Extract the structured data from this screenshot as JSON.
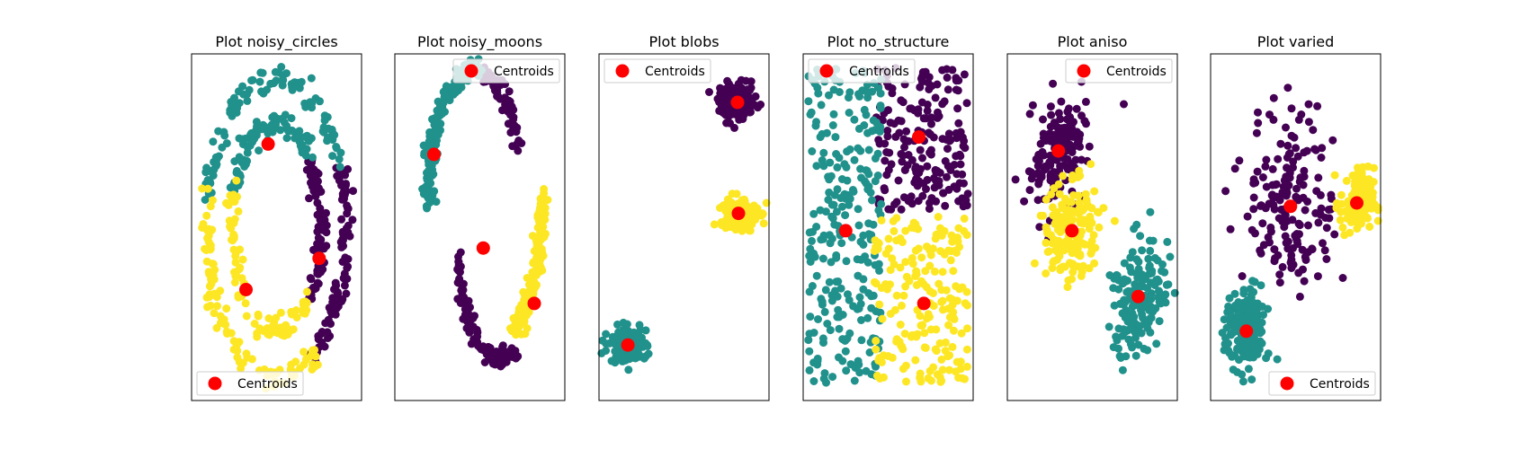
{
  "colors": {
    "cluster_0": "#440154",
    "cluster_1": "#21918c",
    "cluster_2": "#fde725",
    "centroid": "#ff0000"
  },
  "chart_data": [
    {
      "type": "scatter",
      "title": "Plot noisy_circles",
      "legend": {
        "label": "Centroids",
        "placement": "lower left"
      },
      "axes_visible": false,
      "xlim": [
        0,
        1
      ],
      "ylim": [
        0,
        1
      ],
      "clusters": [
        {
          "label": 0,
          "n": 170,
          "arcs": [
            {
              "cx": 0.5,
              "cy": 0.5,
              "rx": 0.41,
              "ry": 0.43,
              "a0": 305,
              "a1": 360,
              "noise": 0.018
            },
            {
              "cx": 0.5,
              "cy": 0.5,
              "rx": 0.41,
              "ry": 0.43,
              "a0": 0,
              "a1": 25,
              "noise": 0.018
            },
            {
              "cx": 0.5,
              "cy": 0.5,
              "rx": 0.26,
              "ry": 0.3,
              "a0": 315,
              "a1": 360,
              "noise": 0.018
            },
            {
              "cx": 0.5,
              "cy": 0.5,
              "rx": 0.26,
              "ry": 0.3,
              "a0": 0,
              "a1": 40,
              "noise": 0.018
            }
          ]
        },
        {
          "label": 1,
          "n": 190,
          "arcs": [
            {
              "cx": 0.5,
              "cy": 0.5,
              "rx": 0.41,
              "ry": 0.43,
              "a0": 25,
              "a1": 165,
              "noise": 0.018
            },
            {
              "cx": 0.5,
              "cy": 0.5,
              "rx": 0.26,
              "ry": 0.3,
              "a0": 40,
              "a1": 160,
              "noise": 0.018
            }
          ]
        },
        {
          "label": 2,
          "n": 190,
          "arcs": [
            {
              "cx": 0.5,
              "cy": 0.5,
              "rx": 0.41,
              "ry": 0.43,
              "a0": 165,
              "a1": 305,
              "noise": 0.018
            },
            {
              "cx": 0.5,
              "cy": 0.5,
              "rx": 0.26,
              "ry": 0.3,
              "a0": 160,
              "a1": 315,
              "noise": 0.018
            }
          ]
        }
      ],
      "centroids": [
        [
          0.45,
          0.74
        ],
        [
          0.75,
          0.41
        ],
        [
          0.32,
          0.32
        ]
      ]
    },
    {
      "type": "scatter",
      "title": "Plot noisy_moons",
      "legend": {
        "label": "Centroids",
        "placement": "upper right"
      },
      "axes_visible": false,
      "xlim": [
        0,
        1
      ],
      "ylim": [
        0,
        1
      ],
      "clusters": [
        {
          "label": 0,
          "n": 180,
          "arcs": [
            {
              "cx": 0.5,
              "cy": 0.5,
              "rx": 0.24,
              "ry": 0.32,
              "a0": 20,
              "a1": 88,
              "noise": 0.015,
              "yshift": 0.12
            },
            {
              "cx": 0.5,
              "cy": 0.5,
              "rx": 0.25,
              "ry": 0.36,
              "a0": 190,
              "a1": 290,
              "noise": 0.015,
              "xshift": 0.12,
              "yshift": -0.02
            }
          ]
        },
        {
          "label": 1,
          "n": 170,
          "arcs": [
            {
              "cx": 0.5,
              "cy": 0.5,
              "rx": 0.3,
              "ry": 0.34,
              "a0": 88,
              "a1": 190,
              "noise": 0.015,
              "yshift": 0.12
            }
          ]
        },
        {
          "label": 2,
          "n": 160,
          "arcs": [
            {
              "cx": 0.5,
              "cy": 0.5,
              "rx": 0.25,
              "ry": 0.42,
              "a0": 285,
              "a1": 360,
              "noise": 0.015,
              "xshift": 0.12,
              "yshift": 0.1
            }
          ]
        }
      ],
      "centroids": [
        [
          0.23,
          0.71
        ],
        [
          0.52,
          0.44
        ],
        [
          0.82,
          0.28
        ]
      ]
    },
    {
      "type": "scatter",
      "title": "Plot blobs",
      "legend": {
        "label": "Centroids",
        "placement": "upper left"
      },
      "axes_visible": false,
      "xlim": [
        0,
        1
      ],
      "ylim": [
        0,
        1
      ],
      "clusters": [
        {
          "label": 0,
          "n": 160,
          "blob": {
            "cx": 0.815,
            "cy": 0.86,
            "sx": 0.055,
            "sy": 0.025
          }
        },
        {
          "label": 1,
          "n": 160,
          "blob": {
            "cx": 0.17,
            "cy": 0.16,
            "sx": 0.055,
            "sy": 0.025
          }
        },
        {
          "label": 2,
          "n": 160,
          "blob": {
            "cx": 0.82,
            "cy": 0.54,
            "sx": 0.055,
            "sy": 0.025
          }
        }
      ],
      "centroids": [
        [
          0.815,
          0.86
        ],
        [
          0.17,
          0.16
        ],
        [
          0.82,
          0.54
        ]
      ]
    },
    {
      "type": "scatter",
      "title": "Plot no_structure",
      "legend": {
        "label": "Centroids",
        "placement": "upper left"
      },
      "axes_visible": false,
      "xlim": [
        0,
        1
      ],
      "ylim": [
        0,
        1
      ],
      "clusters": [
        {
          "label": 0,
          "n": 190,
          "rect": {
            "x0": 0.43,
            "x1": 0.97,
            "y0": 0.55,
            "y1": 0.96
          }
        },
        {
          "label": 1,
          "n": 260,
          "rect": {
            "x0": 0.03,
            "x1": 0.46,
            "y0": 0.05,
            "y1": 0.96
          }
        },
        {
          "label": 2,
          "n": 190,
          "rect": {
            "x0": 0.42,
            "x1": 0.97,
            "y0": 0.05,
            "y1": 0.53
          }
        }
      ],
      "centroids": [
        [
          0.68,
          0.76
        ],
        [
          0.25,
          0.49
        ],
        [
          0.71,
          0.28
        ]
      ]
    },
    {
      "type": "scatter",
      "title": "Plot aniso",
      "legend": {
        "label": "Centroids",
        "placement": "upper right"
      },
      "axes_visible": false,
      "xlim": [
        0,
        1
      ],
      "ylim": [
        0,
        1
      ],
      "clusters": [
        {
          "label": 0,
          "n": 160,
          "blob": {
            "cx": 0.3,
            "cy": 0.72,
            "sx": 0.07,
            "sy": 0.09,
            "rot": -0.9
          }
        },
        {
          "label": 1,
          "n": 160,
          "blob": {
            "cx": 0.77,
            "cy": 0.3,
            "sx": 0.07,
            "sy": 0.09,
            "rot": -0.9
          }
        },
        {
          "label": 2,
          "n": 160,
          "blob": {
            "cx": 0.38,
            "cy": 0.49,
            "sx": 0.07,
            "sy": 0.09,
            "rot": -0.9
          }
        }
      ],
      "centroids": [
        [
          0.3,
          0.72
        ],
        [
          0.38,
          0.49
        ],
        [
          0.77,
          0.3
        ]
      ]
    },
    {
      "type": "scatter",
      "title": "Plot varied",
      "legend": {
        "label": "Centroids",
        "placement": "lower right"
      },
      "axes_visible": false,
      "xlim": [
        0,
        1
      ],
      "ylim": [
        0,
        1
      ],
      "clusters": [
        {
          "label": 0,
          "n": 170,
          "blob": {
            "cx": 0.47,
            "cy": 0.58,
            "sx": 0.13,
            "sy": 0.13
          }
        },
        {
          "label": 1,
          "n": 190,
          "blob": {
            "cx": 0.21,
            "cy": 0.2,
            "sx": 0.06,
            "sy": 0.06
          }
        },
        {
          "label": 2,
          "n": 110,
          "blob": {
            "cx": 0.86,
            "cy": 0.57,
            "sx": 0.05,
            "sy": 0.05
          }
        }
      ],
      "centroids": [
        [
          0.47,
          0.56
        ],
        [
          0.21,
          0.2
        ],
        [
          0.86,
          0.57
        ]
      ]
    }
  ]
}
